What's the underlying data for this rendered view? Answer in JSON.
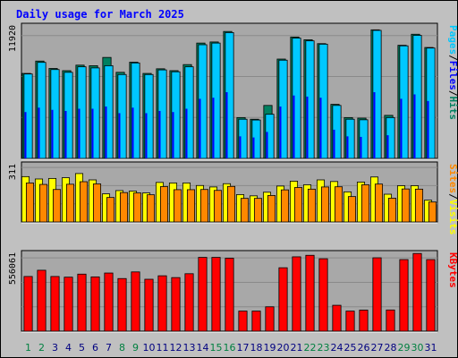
{
  "chart_data": {
    "title": "Daily usage for March 2025",
    "colors": {
      "pages": "#00a0a0",
      "files": "#00c8ff",
      "hits": "#008060",
      "sites": "#ff8800",
      "visits": "#ffff00",
      "kbytes": "#ff0000",
      "background": "#c0c0c0",
      "plot_background": "#a8a8a8",
      "title_color": "#0000ff",
      "weekday_label": "#008040",
      "weekend_label": "#008040",
      "day_label_weekday": "#000080"
    },
    "panels": [
      {
        "type": "bar",
        "name": "hits-files-pages",
        "ymax_label": "11920",
        "ymax": 11920,
        "legend": [
          "Pages",
          "/",
          "Files",
          "/",
          "Hits"
        ],
        "series": [
          {
            "name": "Hits",
            "values": [
              7700,
              8820,
              8150,
              7950,
              8450,
              8400,
              9150,
              7800,
              8720,
              7700,
              8120,
              7950,
              8500,
              10450,
              10550,
              11500,
              3700,
              3550,
              4800,
              9000,
              11000,
              10750,
              10400,
              4900,
              3700,
              3650,
              11650,
              3900,
              10250,
              11250,
              10050
            ]
          },
          {
            "name": "Files",
            "values": [
              7650,
              8700,
              8050,
              7800,
              8300,
              8200,
              8400,
              7600,
              8650,
              7600,
              8020,
              7850,
              8300,
              10300,
              10450,
              11400,
              3550,
              3480,
              4000,
              8900,
              10900,
              10650,
              10350,
              4800,
              3550,
              3500,
              11600,
              3700,
              10200,
              11150,
              10000
            ]
          },
          {
            "name": "Pages",
            "values": [
              4200,
              4600,
              4400,
              4300,
              4500,
              4500,
              4700,
              4100,
              4600,
              4100,
              4300,
              4200,
              4500,
              5400,
              5500,
              6000,
              2000,
              1900,
              2400,
              4700,
              5700,
              5600,
              5500,
              2600,
              2000,
              1950,
              6000,
              2100,
              5400,
              5800,
              5200
            ]
          }
        ]
      },
      {
        "type": "bar",
        "name": "sites-visits",
        "ymax_label": "311",
        "ymax": 311,
        "legend": [
          "Sites",
          "/",
          "Visits"
        ],
        "series": [
          {
            "name": "Visits",
            "values": [
              250,
              237,
              240,
              244,
              267,
              232,
              155,
              173,
              170,
              160,
              218,
              215,
              215,
              201,
              193,
              211,
              151,
              144,
              164,
              198,
              225,
              205,
              232,
              223,
              166,
              220,
              248,
              153,
              200,
              200,
              120
            ]
          },
          {
            "name": "Sites",
            "values": [
              215,
              207,
              179,
              208,
              222,
              210,
              135,
              162,
              160,
              150,
              195,
              178,
              178,
              179,
              174,
              196,
              130,
              130,
              146,
              177,
              190,
              181,
              193,
              194,
              140,
              205,
              209,
              131,
              182,
              181,
              110
            ]
          }
        ]
      },
      {
        "type": "bar",
        "name": "kbytes",
        "ymax_label": "556061",
        "ymax": 556061,
        "legend": [
          "KBytes"
        ],
        "series": [
          {
            "name": "KBytes",
            "values": [
              395000,
              440000,
              395000,
              390000,
              412000,
              392000,
              420000,
              380000,
              428000,
              375000,
              400000,
              387000,
              415000,
              533000,
              533000,
              527000,
              145000,
              145000,
              176000,
              458000,
              537000,
              548000,
              523000,
              187000,
              145000,
              152000,
              530000,
              153000,
              517000,
              561000,
              517000
            ]
          }
        ]
      }
    ],
    "categories": [
      "1",
      "2",
      "3",
      "4",
      "5",
      "6",
      "7",
      "8",
      "9",
      "10",
      "11",
      "12",
      "13",
      "14",
      "15",
      "16",
      "17",
      "18",
      "19",
      "20",
      "21",
      "22",
      "23",
      "24",
      "25",
      "26",
      "27",
      "28",
      "29",
      "30",
      "31"
    ],
    "weekend_days": [
      "1",
      "2",
      "8",
      "9",
      "15",
      "16",
      "22",
      "23",
      "29",
      "30"
    ]
  }
}
